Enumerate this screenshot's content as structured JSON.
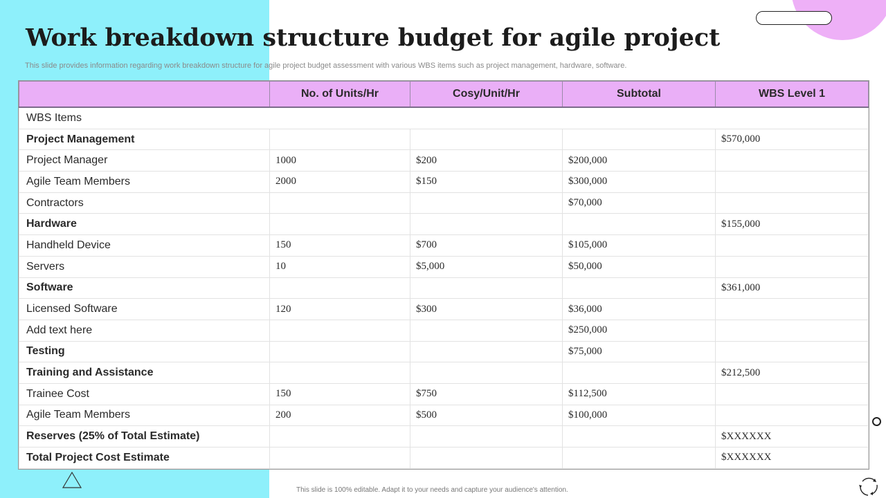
{
  "title": "Work breakdown structure budget for agile project",
  "subtitle": "This slide provides information regarding work breakdown structure for agile project budget assessment with various WBS items such as project management, hardware, software.",
  "footer": "This slide is 100% editable. Adapt it to your needs and capture your audience's attention.",
  "colors": {
    "cyan_panel": "#8ef0fb",
    "pink_accent": "#eeb0f7",
    "header_bg": "#eaaff7"
  },
  "icons": [
    "triangle-icon",
    "cycle-icon",
    "ring-icon"
  ],
  "table": {
    "headers": [
      "",
      "No. of Units/Hr",
      "Cosy/Unit/Hr",
      "Subtotal",
      "WBS Level 1"
    ],
    "rows": [
      {
        "item": "WBS Items",
        "bold": false,
        "cells": [
          "",
          "",
          "",
          ""
        ]
      },
      {
        "item": "Project Management",
        "bold": true,
        "cells": [
          "",
          "",
          "",
          "$570,000"
        ]
      },
      {
        "item": "Project Manager",
        "bold": false,
        "cells": [
          "1000",
          "$200",
          "$200,000",
          ""
        ]
      },
      {
        "item": "Agile Team Members",
        "bold": false,
        "cells": [
          "2000",
          "$150",
          "$300,000",
          ""
        ]
      },
      {
        "item": "Contractors",
        "bold": false,
        "cells": [
          "",
          "",
          "$70,000",
          ""
        ]
      },
      {
        "item": "Hardware",
        "bold": true,
        "cells": [
          "",
          "",
          "",
          "$155,000"
        ]
      },
      {
        "item": "Handheld Device",
        "bold": false,
        "cells": [
          "150",
          "$700",
          "$105,000",
          ""
        ]
      },
      {
        "item": "Servers",
        "bold": false,
        "cells": [
          "10",
          "$5,000",
          "$50,000",
          ""
        ]
      },
      {
        "item": "Software",
        "bold": true,
        "cells": [
          "",
          "",
          "",
          "$361,000"
        ]
      },
      {
        "item": "Licensed Software",
        "bold": false,
        "cells": [
          "120",
          "$300",
          "$36,000",
          ""
        ]
      },
      {
        "item": "Add text here",
        "bold": false,
        "cells": [
          "",
          "",
          "$250,000",
          ""
        ]
      },
      {
        "item": "Testing",
        "bold": true,
        "cells": [
          "",
          "",
          "$75,000",
          ""
        ]
      },
      {
        "item": "Training and Assistance",
        "bold": true,
        "cells": [
          "",
          "",
          "",
          "$212,500"
        ]
      },
      {
        "item": "Trainee Cost",
        "bold": false,
        "cells": [
          "150",
          "$750",
          "$112,500",
          ""
        ]
      },
      {
        "item": "Agile Team Members",
        "bold": false,
        "cells": [
          "200",
          "$500",
          "$100,000",
          ""
        ]
      },
      {
        "item": "Reserves (25% of Total Estimate)",
        "bold": true,
        "cells": [
          "",
          "",
          "",
          "$XXXXXX"
        ]
      },
      {
        "item": "Total Project Cost Estimate",
        "bold": true,
        "cells": [
          "",
          "",
          "",
          "$XXXXXX"
        ]
      }
    ]
  }
}
